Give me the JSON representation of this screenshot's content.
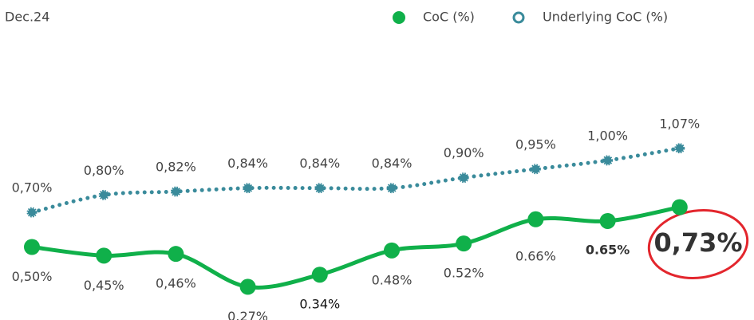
{
  "chart_data": {
    "type": "line",
    "subtitle": "Dec.24",
    "categories": [
      null,
      null,
      null,
      null,
      null,
      null,
      null,
      null,
      null,
      null
    ],
    "series": [
      {
        "name": "CoC (%)",
        "color": "#10b04a",
        "values": [
          0.5,
          0.45,
          0.46,
          0.27,
          0.34,
          0.48,
          0.52,
          0.66,
          0.65,
          0.73
        ],
        "value_labels": [
          "0,50%",
          "0,45%",
          "0,46%",
          "0.27%",
          "0.34%",
          "0.48%",
          "0.52%",
          "0.66%",
          "0.65%",
          "0,73%"
        ]
      },
      {
        "name": "Underlying CoC (%)",
        "color": "#3a8b9b",
        "values": [
          0.7,
          0.8,
          0.82,
          0.84,
          0.84,
          0.84,
          0.9,
          0.95,
          1.0,
          1.07
        ],
        "value_labels": [
          "0,70%",
          "0,80%",
          "0,82%",
          "0,84%",
          "0,84%",
          "0,84%",
          "0,90%",
          "0,95%",
          "1,00%",
          "1,07%"
        ]
      }
    ]
  }
}
